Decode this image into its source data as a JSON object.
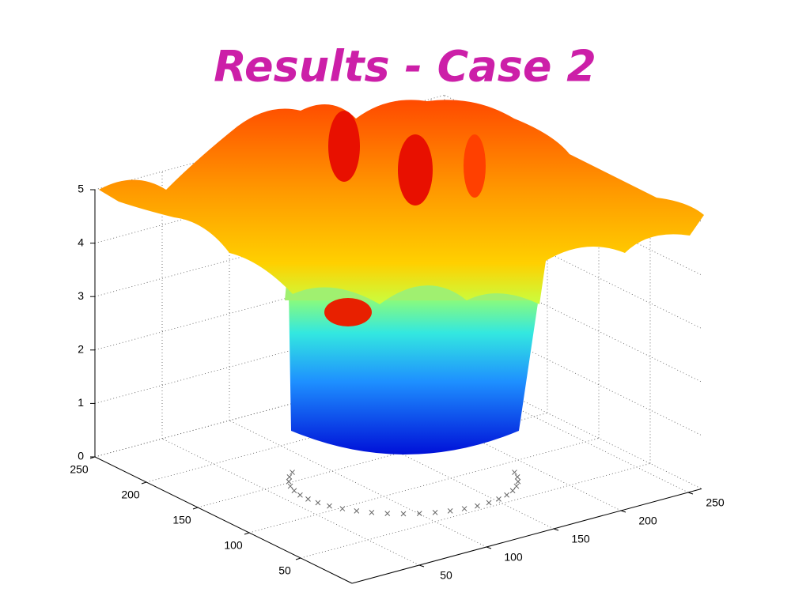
{
  "title": "Results - Case 2",
  "chart_data": {
    "type": "surface3d",
    "xlim": [
      0,
      250
    ],
    "xticks": [
      50,
      100,
      150,
      200,
      250
    ],
    "ylim": [
      0,
      260
    ],
    "yticks": [
      50,
      100,
      150,
      200,
      250
    ],
    "zlim": [
      0,
      5
    ],
    "zticks": [
      0,
      1,
      2,
      3,
      4,
      5
    ],
    "grid": true
  }
}
